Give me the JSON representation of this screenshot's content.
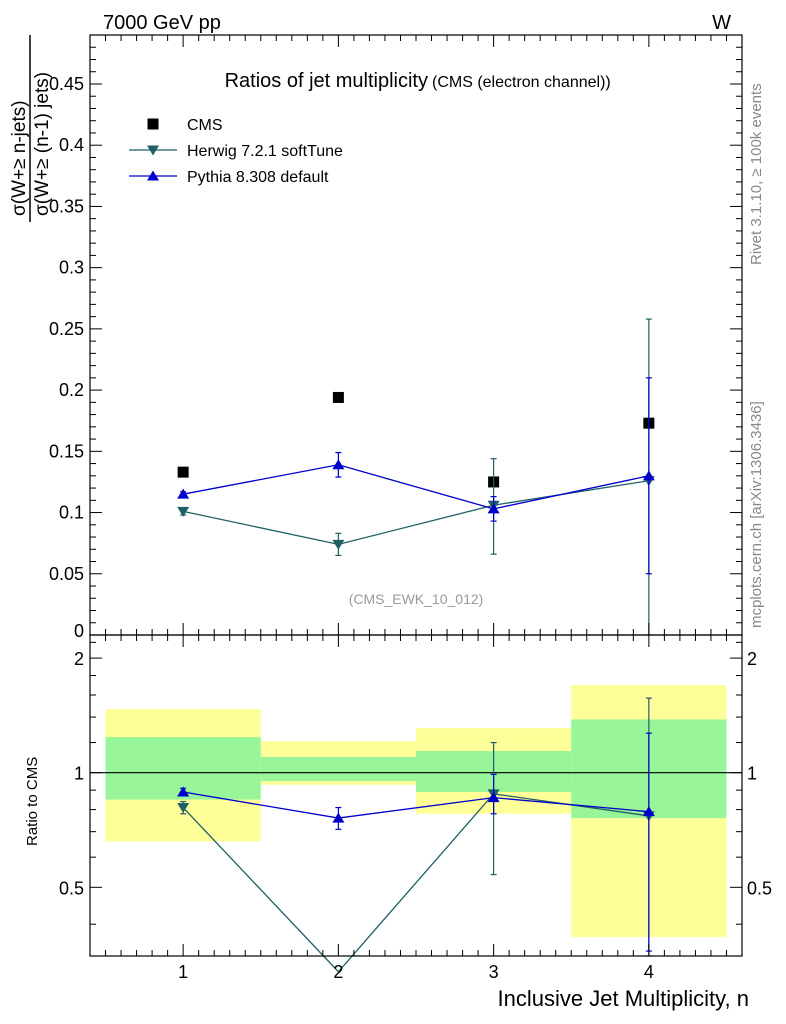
{
  "header": {
    "left": "7000 GeV pp",
    "right": "W"
  },
  "side_text": {
    "rivet": "Rivet 3.1.10, ≥ 100k events",
    "mcplots": "mcplots.cern.ch [arXiv:1306.3436]"
  },
  "colors": {
    "cms": "#000000",
    "herwig": "#1f5f66",
    "pythia": "#0000cc",
    "band_inner": "#99f599",
    "band_outer": "#ffff99"
  },
  "chart_data": [
    {
      "type": "scatter",
      "panel": "main",
      "title": "Ratios of jet multiplicity",
      "subtitle": "(CMS (electron channel))",
      "ylabel_numerator": "σ(W+≥ n-jets)",
      "ylabel_denominator": "σ(W+≥ (n-1) jets)",
      "annotation": "(CMS_EWK_10_012)",
      "ylim": [
        0,
        0.49
      ],
      "xlim": [
        0.4,
        4.6
      ],
      "yticks": [
        0,
        0.05,
        0.1,
        0.15,
        0.2,
        0.25,
        0.3,
        0.35,
        0.4,
        0.45
      ],
      "ytick_labels": [
        "0",
        "0.05",
        "0.1",
        "0.15",
        "0.2",
        "0.25",
        "0.3",
        "0.35",
        "0.4",
        "0.45"
      ],
      "legend_position": "top-left",
      "x": [
        1,
        2,
        3,
        4
      ],
      "series": [
        {
          "name": "CMS",
          "marker": "square",
          "values": [
            0.133,
            0.194,
            0.125,
            0.173
          ]
        },
        {
          "name": "Herwig 7.2.1 softTune",
          "marker": "triangle-down",
          "values": [
            0.101,
            0.074,
            0.106,
            0.126
          ],
          "err_low": [
            0.003,
            0.009,
            0.04,
            0.13
          ],
          "err_high": [
            0.003,
            0.009,
            0.038,
            0.132
          ]
        },
        {
          "name": "Pythia 8.308 default",
          "marker": "triangle-up",
          "values": [
            0.115,
            0.139,
            0.103,
            0.13
          ],
          "err_low": [
            0.002,
            0.01,
            0.01,
            0.08
          ],
          "err_high": [
            0.002,
            0.01,
            0.01,
            0.08
          ]
        }
      ]
    },
    {
      "type": "scatter",
      "panel": "ratio",
      "ylabel": "Ratio to CMS",
      "xlabel": "Inclusive Jet Multiplicity, n",
      "ylim": [
        0.33,
        2.3
      ],
      "xlim": [
        0.4,
        4.6
      ],
      "yticks": [
        0.5,
        1,
        2
      ],
      "ytick_labels": [
        "0.5",
        "1",
        "2"
      ],
      "xticks": [
        1,
        2,
        3,
        4
      ],
      "xtick_labels": [
        "1",
        "2",
        "3",
        "4"
      ],
      "x": [
        1,
        2,
        3,
        4
      ],
      "bands": [
        {
          "x_low": 0.5,
          "x_high": 1.5,
          "inner": [
            0.85,
            1.24
          ],
          "outer": [
            0.66,
            1.47
          ]
        },
        {
          "x_low": 1.5,
          "x_high": 2.5,
          "inner": [
            0.95,
            1.1
          ],
          "outer": [
            0.93,
            1.21
          ]
        },
        {
          "x_low": 2.5,
          "x_high": 3.5,
          "inner": [
            0.89,
            1.14
          ],
          "outer": [
            0.78,
            1.31
          ]
        },
        {
          "x_low": 3.5,
          "x_high": 4.5,
          "inner": [
            0.76,
            1.38
          ],
          "outer": [
            0.37,
            1.7
          ]
        }
      ],
      "series": [
        {
          "name": "Herwig 7.2.1 softTune",
          "marker": "triangle-down",
          "values": [
            0.81,
            0.3,
            0.88,
            0.77
          ],
          "err_low": [
            0.03,
            0.0,
            0.34,
            0.5
          ],
          "err_high": [
            0.03,
            0.0,
            0.32,
            0.8
          ]
        },
        {
          "name": "Pythia 8.308 default",
          "marker": "triangle-up",
          "values": [
            0.89,
            0.76,
            0.86,
            0.79
          ],
          "err_low": [
            0.02,
            0.05,
            0.08,
            0.45
          ],
          "err_high": [
            0.02,
            0.05,
            0.13,
            0.48
          ]
        }
      ]
    }
  ]
}
